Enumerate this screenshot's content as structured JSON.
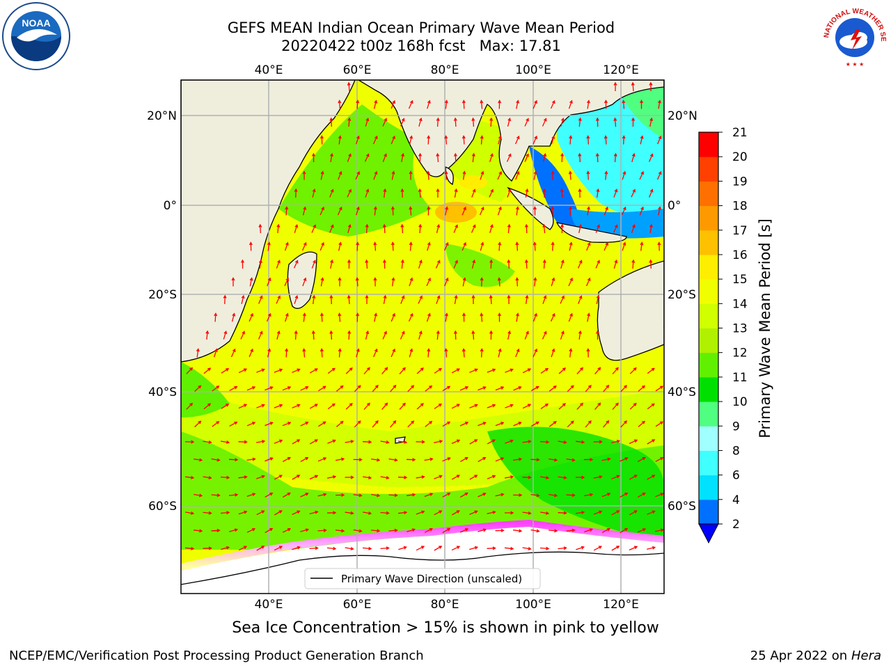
{
  "header": {
    "title_line1": "GEFS MEAN Indian Ocean Primary Wave Mean Period",
    "title_line2": "20220422 t00z 168h fcst   Max: 17.81"
  },
  "map": {
    "top_lon_labels": [
      "40°E",
      "60°E",
      "80°E",
      "100°E",
      "120°E"
    ],
    "bottom_lon_labels": [
      "40°E",
      "60°E",
      "80°E",
      "100°E",
      "120°E"
    ],
    "left_lat_labels": [
      "20°N",
      "0°",
      "20°S",
      "40°S",
      "60°S"
    ],
    "right_lat_labels": [
      "20°N",
      "0°",
      "20°S",
      "40°S",
      "60°S"
    ],
    "lon_range": [
      20,
      130
    ],
    "lat_range": [
      -73,
      28
    ],
    "grid": true,
    "legend_label": "Primary Wave Direction (unscaled)",
    "arrow_color": "#ff0000",
    "land_color": "#efeedd",
    "ice_colors": [
      "#ff40ff",
      "#ffffaa"
    ]
  },
  "colorbar": {
    "title": "Primary Wave Mean Period [s]",
    "tick_labels": [
      "2",
      "4",
      "6",
      "8",
      "9",
      "10",
      "11",
      "12",
      "13",
      "14",
      "15",
      "16",
      "17",
      "18",
      "19",
      "20",
      "21"
    ],
    "colors": [
      "#0070ff",
      "#00e0ff",
      "#40ffff",
      "#a0ffff",
      "#50ff80",
      "#00e000",
      "#60f000",
      "#b0f000",
      "#d0ff00",
      "#f0ff00",
      "#ffee00",
      "#ffc000",
      "#ff9900",
      "#ff7000",
      "#ff4000",
      "#ff0000"
    ],
    "extend_color": "#0000ff"
  },
  "footer": {
    "note": "Sea Ice Concentration > 15% is shown in pink to yellow",
    "credit_left": "NCEP/EMC/Verification Post Processing Product Generation Branch",
    "date": "25 Apr 2022 on ",
    "machine": "Hera"
  },
  "logos": {
    "left": "noaa-logo",
    "right": "national-weather-service-logo",
    "left_text": "NOAA",
    "right_text": "NATIONAL WEATHER SERVICE"
  }
}
